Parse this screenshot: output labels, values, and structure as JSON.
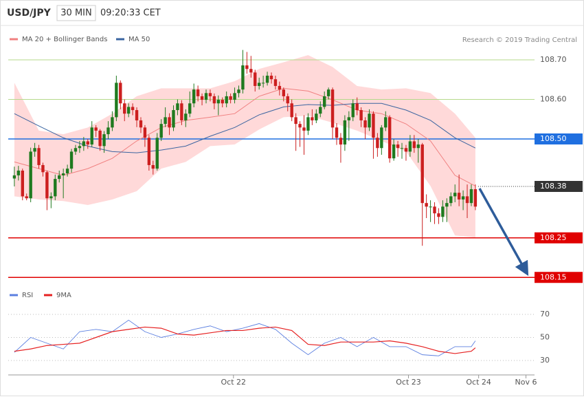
{
  "header": {
    "title": "USD/JPY",
    "timeframe": "30 MIN",
    "time": "09:20:33 CET",
    "credit": "Research © 2019 Trading Central"
  },
  "chart_data": [
    {
      "type": "candlestick",
      "ohlc": {
        "open": [
          108.4,
          108.408,
          108.42,
          108.355,
          108.35,
          108.468,
          108.477,
          108.434,
          108.416,
          108.35,
          108.355,
          108.399,
          108.408,
          108.413,
          108.425,
          108.468,
          108.477,
          108.482,
          108.494,
          108.486,
          108.529,
          108.521,
          108.482,
          108.512,
          108.529,
          108.555,
          108.642,
          108.59,
          108.564,
          108.581,
          108.573,
          108.547,
          108.529,
          108.503,
          108.434,
          108.425,
          108.503,
          108.538,
          108.555,
          108.529,
          108.573,
          108.59,
          108.547,
          108.564,
          108.59,
          108.625,
          108.608,
          108.599,
          108.616,
          108.608,
          108.59,
          108.599,
          108.59,
          108.608,
          108.599,
          108.616,
          108.625,
          108.686,
          108.677,
          108.668,
          108.634,
          108.642,
          108.642,
          108.66,
          108.651,
          108.634,
          108.625,
          108.608,
          108.59,
          108.555,
          108.538,
          108.529,
          108.521,
          108.555,
          108.547,
          108.564,
          108.581,
          108.608,
          108.625,
          108.529,
          108.503,
          108.486,
          108.547,
          108.555,
          108.59,
          108.573,
          108.547,
          108.529,
          108.564,
          108.503,
          108.477,
          108.529,
          108.555,
          108.451,
          108.486,
          108.477,
          108.477,
          108.468,
          108.494,
          108.477,
          108.486,
          108.338,
          108.329,
          108.329,
          108.312,
          108.303,
          108.329,
          108.338,
          108.355,
          108.364,
          108.347,
          108.355,
          108.338,
          108.373
        ],
        "high": [
          108.43,
          108.432,
          108.425,
          108.362,
          108.478,
          108.49,
          108.485,
          108.44,
          108.42,
          108.365,
          108.41,
          108.42,
          108.425,
          108.435,
          108.475,
          108.485,
          108.495,
          108.505,
          108.5,
          108.545,
          108.535,
          108.525,
          108.52,
          108.545,
          108.57,
          108.66,
          108.648,
          108.6,
          108.59,
          108.59,
          108.58,
          108.555,
          108.535,
          108.51,
          108.445,
          108.515,
          108.55,
          108.58,
          108.565,
          108.585,
          108.6,
          108.598,
          108.575,
          108.62,
          108.64,
          108.635,
          108.615,
          108.625,
          108.625,
          108.615,
          108.61,
          108.605,
          108.62,
          108.615,
          108.63,
          108.635,
          108.725,
          108.72,
          108.71,
          108.675,
          108.655,
          108.66,
          108.67,
          108.668,
          108.66,
          108.645,
          108.63,
          108.615,
          108.6,
          108.565,
          108.545,
          108.56,
          108.565,
          108.575,
          108.575,
          108.595,
          108.62,
          108.63,
          108.63,
          108.54,
          108.515,
          108.56,
          108.57,
          108.6,
          108.605,
          108.58,
          108.555,
          108.575,
          108.57,
          108.515,
          108.535,
          108.57,
          108.56,
          108.5,
          108.495,
          108.49,
          108.485,
          108.51,
          108.51,
          108.5,
          108.49,
          108.36,
          108.345,
          108.34,
          108.325,
          108.345,
          108.35,
          108.365,
          108.385,
          108.41,
          108.37,
          108.385,
          108.385,
          108.385
        ],
        "low": [
          108.38,
          108.395,
          108.345,
          108.345,
          108.34,
          108.455,
          108.425,
          108.405,
          108.32,
          108.325,
          108.345,
          108.39,
          108.35,
          108.405,
          108.415,
          108.46,
          108.465,
          108.47,
          108.475,
          108.48,
          108.505,
          108.47,
          108.465,
          108.5,
          108.52,
          108.545,
          108.575,
          108.545,
          108.555,
          108.56,
          108.53,
          108.515,
          108.48,
          108.42,
          108.41,
          108.42,
          108.495,
          108.53,
          108.51,
          108.52,
          108.56,
          108.535,
          108.53,
          108.555,
          108.58,
          108.595,
          108.585,
          108.59,
          108.595,
          108.575,
          108.56,
          108.58,
          108.58,
          108.59,
          108.59,
          108.605,
          108.615,
          108.665,
          108.655,
          108.62,
          108.625,
          108.63,
          108.635,
          108.64,
          108.625,
          108.61,
          108.595,
          108.57,
          108.545,
          108.47,
          108.48,
          108.46,
          108.51,
          108.535,
          108.54,
          108.555,
          108.575,
          108.6,
          108.5,
          108.485,
          108.44,
          108.47,
          108.495,
          108.545,
          108.56,
          108.53,
          108.5,
          108.52,
          108.45,
          108.455,
          108.46,
          108.52,
          108.44,
          108.445,
          108.455,
          108.45,
          108.445,
          108.455,
          108.465,
          108.44,
          108.23,
          108.3,
          108.29,
          108.285,
          108.285,
          108.29,
          108.29,
          108.33,
          108.34,
          108.33,
          108.32,
          108.3,
          108.33,
          108.32
        ],
        "close": [
          108.408,
          108.42,
          108.355,
          108.35,
          108.468,
          108.477,
          108.434,
          108.416,
          108.35,
          108.355,
          108.399,
          108.408,
          108.413,
          108.425,
          108.468,
          108.477,
          108.482,
          108.494,
          108.486,
          108.529,
          108.521,
          108.482,
          108.512,
          108.529,
          108.555,
          108.642,
          108.59,
          108.564,
          108.581,
          108.573,
          108.547,
          108.529,
          108.503,
          108.434,
          108.425,
          108.503,
          108.538,
          108.555,
          108.529,
          108.573,
          108.59,
          108.547,
          108.564,
          108.59,
          108.625,
          108.608,
          108.599,
          108.616,
          108.608,
          108.59,
          108.599,
          108.59,
          108.608,
          108.599,
          108.616,
          108.625,
          108.686,
          108.677,
          108.668,
          108.634,
          108.642,
          108.642,
          108.66,
          108.651,
          108.634,
          108.625,
          108.608,
          108.59,
          108.555,
          108.538,
          108.529,
          108.521,
          108.555,
          108.547,
          108.564,
          108.581,
          108.608,
          108.625,
          108.529,
          108.503,
          108.486,
          108.547,
          108.555,
          108.59,
          108.573,
          108.547,
          108.529,
          108.564,
          108.503,
          108.477,
          108.529,
          108.555,
          108.451,
          108.486,
          108.477,
          108.477,
          108.468,
          108.494,
          108.477,
          108.486,
          108.338,
          108.329,
          108.329,
          108.312,
          108.303,
          108.329,
          108.338,
          108.355,
          108.364,
          108.347,
          108.355,
          108.338,
          108.373,
          108.329
        ]
      },
      "up_color": "#1f7a1f",
      "down_color": "#cc1f1f",
      "overlays": [
        {
          "name": "MA 20 + Bollinger Bands",
          "color": "#f08080",
          "band_color": "#ffd9d9",
          "x": [
            0,
            6,
            12,
            18,
            24,
            30,
            36,
            42,
            48,
            54,
            60,
            66,
            72,
            78,
            84,
            90,
            96,
            102,
            108,
            113
          ],
          "values": [
            108.442,
            108.425,
            108.408,
            108.425,
            108.451,
            108.495,
            108.529,
            108.547,
            108.555,
            108.564,
            108.608,
            108.628,
            108.621,
            108.599,
            108.573,
            108.564,
            108.538,
            108.495,
            108.408,
            108.381
          ],
          "upper": [
            108.642,
            108.521,
            108.512,
            108.529,
            108.564,
            108.608,
            108.628,
            108.628,
            108.628,
            108.646,
            108.677,
            108.694,
            108.712,
            108.682,
            108.634,
            108.625,
            108.628,
            108.616,
            108.564,
            108.503
          ],
          "lower": [
            108.355,
            108.347,
            108.343,
            108.333,
            108.347,
            108.368,
            108.425,
            108.442,
            108.482,
            108.486,
            108.524,
            108.555,
            108.559,
            108.541,
            108.521,
            108.495,
            108.468,
            108.381,
            108.256,
            108.251
          ]
        },
        {
          "name": "MA 50",
          "color": "#3a64a0",
          "x": [
            0,
            6,
            12,
            18,
            24,
            30,
            36,
            42,
            48,
            54,
            60,
            66,
            72,
            78,
            84,
            90,
            96,
            102,
            108,
            113
          ],
          "values": [
            108.564,
            108.533,
            108.503,
            108.482,
            108.468,
            108.465,
            108.472,
            108.482,
            108.507,
            108.529,
            108.561,
            108.581,
            108.587,
            108.585,
            108.59,
            108.59,
            108.573,
            108.547,
            108.503,
            108.477
          ]
        }
      ],
      "levels": [
        {
          "value": 108.7,
          "label": "108.70",
          "color": "#b5d98a",
          "style": "text"
        },
        {
          "value": 108.6,
          "label": "108.60",
          "color": "#b5d98a",
          "style": "text"
        },
        {
          "value": 108.5,
          "label": "108.50",
          "color": "#1f6fe0",
          "style": "box"
        },
        {
          "value": 108.38,
          "label": "108.38",
          "color": "#333333",
          "style": "box",
          "line": "dotted"
        },
        {
          "value": 108.25,
          "label": "108.25",
          "color": "#e00000",
          "style": "box"
        },
        {
          "value": 108.15,
          "label": "108.15",
          "color": "#e00000",
          "style": "box"
        }
      ],
      "xlim": [
        -1.5,
        127.5
      ],
      "ylim": [
        108.12,
        108.8
      ]
    },
    {
      "type": "line",
      "series": [
        {
          "name": "RSI",
          "color": "#5b7fe0",
          "x": [
            0,
            4,
            8,
            12,
            16,
            20,
            24,
            28,
            32,
            36,
            40,
            44,
            48,
            52,
            56,
            60,
            64,
            68,
            72,
            76,
            80,
            84,
            88,
            92,
            96,
            100,
            104,
            108,
            112,
            113
          ],
          "values": [
            37,
            50,
            45,
            40,
            55,
            57,
            55,
            65,
            55,
            50,
            53,
            57,
            60,
            55,
            58,
            62,
            57,
            45,
            35,
            45,
            50,
            42,
            50,
            42,
            42,
            35,
            34,
            42,
            42,
            47
          ]
        },
        {
          "name": "9MA",
          "color": "#e62020",
          "x": [
            0,
            4,
            8,
            12,
            16,
            20,
            24,
            28,
            32,
            36,
            40,
            44,
            48,
            52,
            56,
            60,
            64,
            68,
            72,
            76,
            80,
            84,
            88,
            92,
            96,
            100,
            104,
            108,
            112,
            113
          ],
          "values": [
            38,
            40,
            43,
            44,
            45,
            50,
            55,
            57,
            59,
            58,
            53,
            52,
            54,
            56,
            56,
            58,
            59,
            56,
            44,
            43,
            46,
            46,
            46,
            47,
            45,
            42,
            38,
            36,
            38,
            41
          ]
        }
      ],
      "xlim": [
        -1.5,
        127.5
      ],
      "ylim": [
        20,
        80
      ],
      "yticks": [
        30,
        50,
        70
      ],
      "xticks": [
        {
          "value": 53.7,
          "label": "Oct 22"
        },
        {
          "value": 96.6,
          "label": "Oct 23"
        },
        {
          "value": 113.8,
          "label": "Oct 24"
        },
        {
          "value": 125.4,
          "label": "Nov 6"
        }
      ]
    }
  ]
}
